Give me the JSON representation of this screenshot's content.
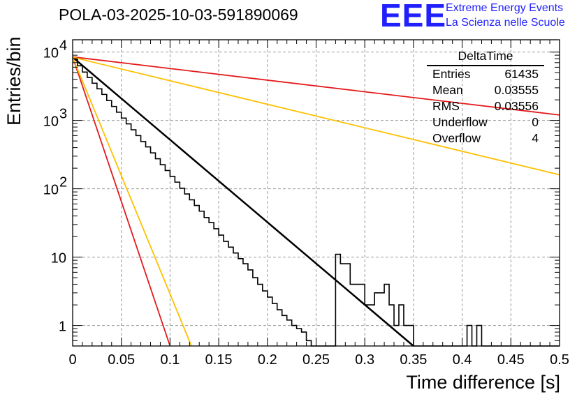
{
  "header": {
    "title": "POLA-03-2025-10-03-591890069"
  },
  "logo": {
    "mark": "EEE",
    "line1": "Extreme Energy Events",
    "line2": "La Scienza nelle Scuole"
  },
  "stats_box": {
    "title": "DeltaTime",
    "rows": [
      {
        "label": "Entries",
        "value": "61435"
      },
      {
        "label": "Mean",
        "value": "0.03555"
      },
      {
        "label": "RMS",
        "value": "0.03556"
      },
      {
        "label": "Underflow",
        "value": "0"
      },
      {
        "label": "Overflow",
        "value": "4"
      }
    ]
  },
  "chart_data": {
    "type": "histogram",
    "xlabel": "Time difference [s]",
    "ylabel": "Entries/bin",
    "xlim": [
      0,
      0.5
    ],
    "ylim_log10": [
      -0.3,
      4.18
    ],
    "yscale": "log",
    "grid": true,
    "x_ticks": [
      {
        "value": 0,
        "label": "0"
      },
      {
        "value": 0.05,
        "label": "0.05"
      },
      {
        "value": 0.1,
        "label": "0.1"
      },
      {
        "value": 0.15,
        "label": "0.15"
      },
      {
        "value": 0.2,
        "label": "0.2"
      },
      {
        "value": 0.25,
        "label": "0.25"
      },
      {
        "value": 0.3,
        "label": "0.3"
      },
      {
        "value": 0.35,
        "label": "0.35"
      },
      {
        "value": 0.4,
        "label": "0.4"
      },
      {
        "value": 0.45,
        "label": "0.45"
      },
      {
        "value": 0.5,
        "label": "0.5"
      }
    ],
    "y_ticks": [
      {
        "value": 1,
        "base": "1",
        "exp": ""
      },
      {
        "value": 10,
        "base": "10",
        "exp": ""
      },
      {
        "value": 100,
        "base": "10",
        "exp": "2"
      },
      {
        "value": 1000,
        "base": "10",
        "exp": "3"
      },
      {
        "value": 10000,
        "base": "10",
        "exp": "4"
      }
    ],
    "histogram": {
      "bin_width": 0.005,
      "counts": [
        7900,
        6300,
        5100,
        4250,
        3500,
        2900,
        2400,
        1950,
        1600,
        1320,
        1080,
        890,
        730,
        600,
        490,
        410,
        335,
        275,
        225,
        185,
        152,
        125,
        102,
        84,
        69,
        57,
        47,
        38,
        32,
        26,
        21,
        17,
        14,
        11.5,
        9.5,
        8,
        6.5,
        5,
        4,
        3.2,
        2.6,
        2.1,
        1.7,
        1.4,
        1.2,
        1,
        0.9,
        0.8,
        0.6,
        0.5,
        0.4,
        0.4,
        0.3,
        0.3,
        0.3,
        0.3,
        0.3,
        0.3,
        0.3,
        0.3,
        0.3,
        0.3,
        0.3,
        0.3,
        0.3,
        0.3,
        0.3,
        0.3,
        0.3,
        0.3,
        0.3,
        0.3,
        0.3,
        0.3,
        0.3,
        0.3,
        0.3,
        0.3,
        0.3,
        0.3,
        0.3,
        0.3,
        0.3,
        0.3,
        0.3,
        0.3,
        0.3,
        0.3,
        0.3,
        0.3,
        0.3,
        0.3,
        0.3,
        0.3,
        0.3,
        0.3,
        0.3,
        0.3,
        0.3,
        0.3
      ],
      "overrides": [
        {
          "bin": 54,
          "count": 11
        },
        {
          "bin": 55,
          "count": 8
        },
        {
          "bin": 56,
          "count": 8
        },
        {
          "bin": 57,
          "count": 4
        },
        {
          "bin": 58,
          "count": 4
        },
        {
          "bin": 59,
          "count": 4
        },
        {
          "bin": 60,
          "count": 2
        },
        {
          "bin": 61,
          "count": 2
        },
        {
          "bin": 62,
          "count": 3
        },
        {
          "bin": 63,
          "count": 3
        },
        {
          "bin": 64,
          "count": 4
        },
        {
          "bin": 65,
          "count": 2
        },
        {
          "bin": 66,
          "count": 1
        },
        {
          "bin": 67,
          "count": 2
        },
        {
          "bin": 68,
          "count": 1
        },
        {
          "bin": 69,
          "count": 1
        },
        {
          "bin": 70,
          "count": 0.3
        },
        {
          "bin": 71,
          "count": 0.3
        },
        {
          "bin": 81,
          "count": 1
        },
        {
          "bin": 83,
          "count": 1
        }
      ]
    },
    "series": [
      {
        "name": "fit",
        "color": "#000000",
        "x0": 0,
        "y0": 8400,
        "x1": 0.35,
        "y1": 0.5,
        "width": 2.5
      },
      {
        "name": "red-slow",
        "color": "#e31a1c",
        "x0": 0,
        "y0": 8500,
        "x1": 0.5,
        "y1": 1200,
        "width": 1.8
      },
      {
        "name": "orange-slow",
        "color": "#ffc000",
        "x0": 0,
        "y0": 8400,
        "x1": 0.5,
        "y1": 160,
        "width": 1.8
      },
      {
        "name": "red-fast",
        "color": "#e31a1c",
        "x0": 0,
        "y0": 8500,
        "x1": 0.1,
        "y1": 0.5,
        "width": 1.8
      },
      {
        "name": "orange-fast",
        "color": "#ffc000",
        "x0": 0,
        "y0": 8400,
        "x1": 0.122,
        "y1": 0.5,
        "width": 1.8
      }
    ]
  }
}
